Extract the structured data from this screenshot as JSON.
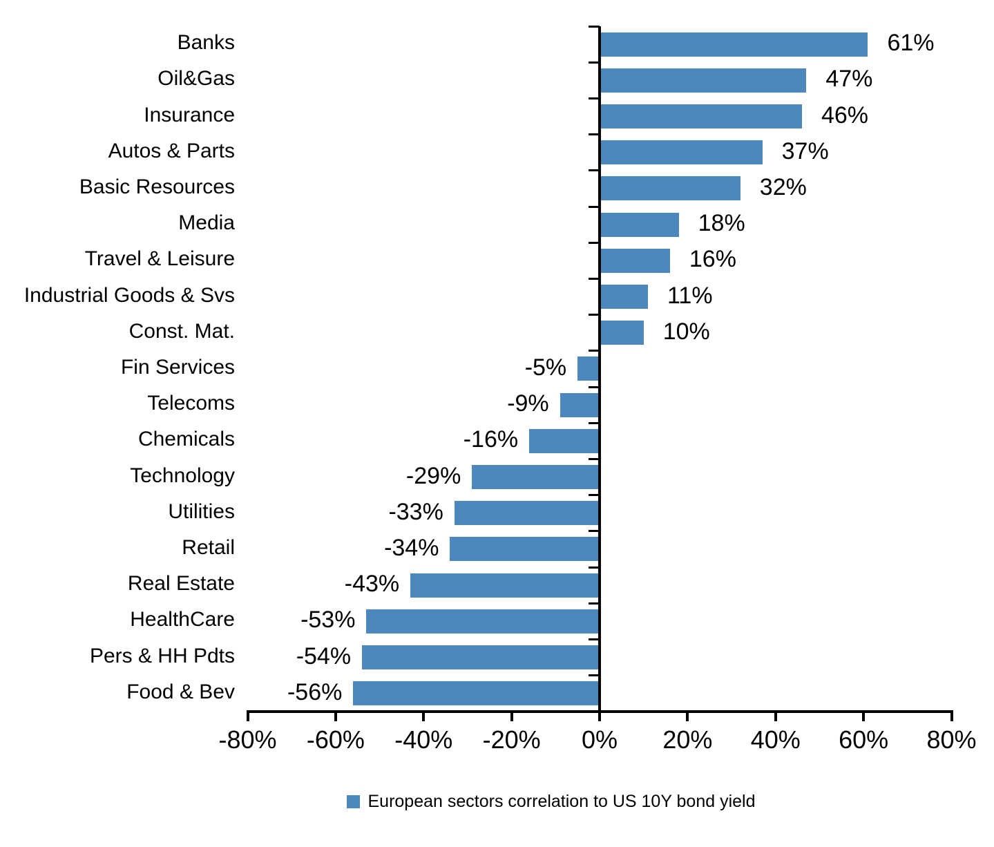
{
  "chart_data": {
    "type": "bar",
    "orientation": "horizontal",
    "title": "",
    "xlabel": "",
    "ylabel": "",
    "xlim": [
      -80,
      80
    ],
    "x_ticks": [
      -80,
      -60,
      -40,
      -20,
      0,
      20,
      40,
      60,
      80
    ],
    "x_tick_labels": [
      "-80%",
      "-60%",
      "-40%",
      "-20%",
      "0%",
      "20%",
      "40%",
      "60%",
      "80%"
    ],
    "grid": false,
    "legend_position": "bottom",
    "legend_label": "European sectors correlation to US 10Y bond yield",
    "bar_color": "#4E86BE",
    "axis_color": "#000000",
    "categories": [
      "Banks",
      "Oil&Gas",
      "Insurance",
      "Autos & Parts",
      "Basic Resources",
      "Media",
      "Travel & Leisure",
      "Industrial Goods & Svs",
      "Const. Mat.",
      "Fin Services",
      "Telecoms",
      "Chemicals",
      "Technology",
      "Utilities",
      "Retail",
      "Real Estate",
      "HealthCare",
      "Pers & HH Pdts",
      "Food & Bev"
    ],
    "values": [
      61,
      47,
      46,
      37,
      32,
      18,
      16,
      11,
      10,
      -5,
      -9,
      -16,
      -29,
      -33,
      -34,
      -43,
      -53,
      -54,
      -56
    ],
    "data_labels": [
      "61%",
      "47%",
      "46%",
      "37%",
      "32%",
      "18%",
      "16%",
      "11%",
      "10%",
      "-5%",
      "-9%",
      "-16%",
      "-29%",
      "-33%",
      "-34%",
      "-43%",
      "-53%",
      "-54%",
      "-56%"
    ]
  }
}
